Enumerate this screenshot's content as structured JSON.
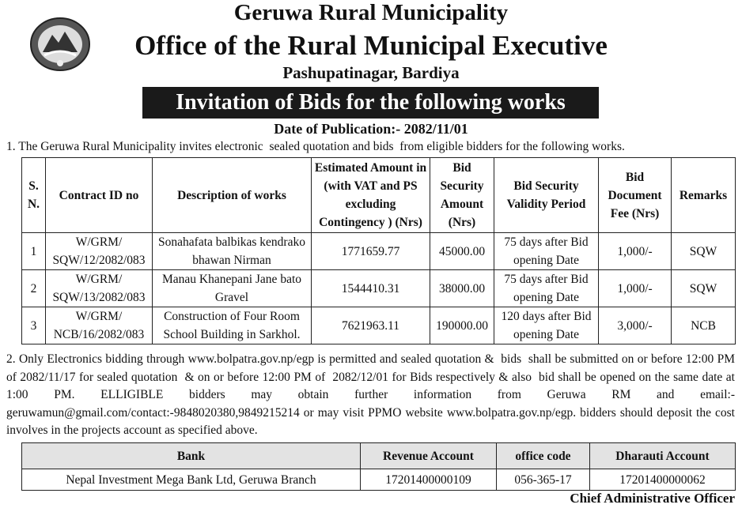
{
  "header": {
    "title": "Geruwa Rural Municipality",
    "office": "Office of the Rural Municipal Executive",
    "location": "Pashupatinagar, Bardiya",
    "banner": "Invitation of Bids for the following works",
    "date": "Date of Publication:- 2082/11/01"
  },
  "intro": "1. The Geruwa Rural Municipality invites electronic  sealed quotation and bids  from eligible bidders for the following works.",
  "table": {
    "headers": [
      "S. N.",
      "Contract ID no",
      "Description of works",
      "Estimated Amount in (with VAT and PS excluding Contingency ) (Nrs)",
      "Bid Security Amount (Nrs)",
      "Bid Security Validity Period",
      "Bid Document Fee (Nrs)",
      "Remarks"
    ],
    "rows": [
      [
        "1",
        "W/GRM/ SQW/12/2082/083",
        "Sonahafata balbikas kendrako bhawan Nirman",
        "1771659.77",
        "45000.00",
        "75 days after Bid opening Date",
        "1,000/-",
        "SQW"
      ],
      [
        "2",
        "W/GRM/ SQW/13/2082/083",
        "Manau Khanepani Jane bato Gravel",
        "1544410.31",
        "38000.00",
        "75 days after Bid opening Date",
        "1,000/-",
        "SQW"
      ],
      [
        "3",
        "W/GRM/ NCB/16/2082/083",
        "Construction of Four Room School Building in Sarkhol.",
        "7621963.11",
        "190000.00",
        "120 days after Bid opening Date",
        "3,000/-",
        "NCB"
      ]
    ]
  },
  "notice": "2. Only Electronics bidding through www.bolpatra.gov.np/egp is permitted and sealed quotation &  bids  shall be submitted on or before 12:00 PM of 2082/11/17 for sealed quotation  & on or before 12:00 PM of  2082/12/01 for Bids respectively & also  bid shall be opened on the same date at 1:00 PM. ELLIGIBLE bidders may obtain further information from Geruwa RM and email:- geruwamun@gmail.com/contact:-9848020380,9849215214 or may visit PPMO website www.bolpatra.gov.np/egp. bidders should deposit the cost involves in the projects account as specified above.",
  "bank_table": {
    "headers": [
      "Bank",
      "Revenue Account",
      "office code",
      "Dharauti Account"
    ],
    "rows": [
      [
        "Nepal Investment Mega Bank Ltd, Geruwa Branch",
        "17201400000109",
        "056-365-17",
        "17201400000062"
      ]
    ]
  },
  "signature": "Chief Administrative Officer"
}
